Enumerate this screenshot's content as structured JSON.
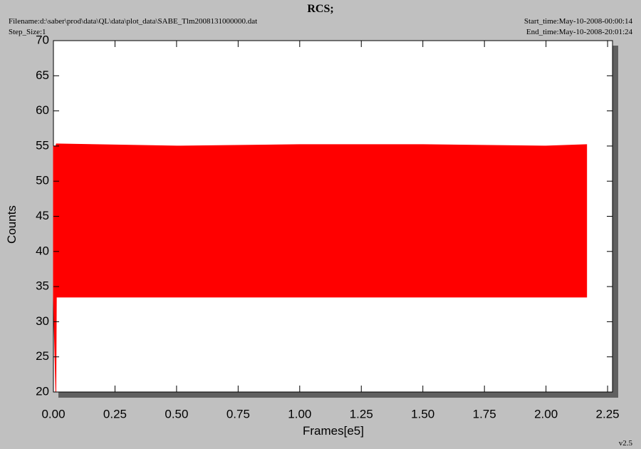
{
  "title": "RCS;",
  "filename": "Filename:d:\\saber\\prod\\data\\QL\\data\\plot_data\\SABE_Tlm2008131000000.dat",
  "step_size": "Step_Size:1",
  "start_time": "Start_time:May-10-2008-00:00:14",
  "end_time": "End_time:May-10-2008-20:01:24",
  "version": "v2.5",
  "chart_data": {
    "type": "range",
    "x_label": "Frames[e5]",
    "y_label": "Counts",
    "x": [
      0,
      0.01,
      0.012,
      0.5,
      1.0,
      1.5,
      2.0,
      2.165
    ],
    "high": [
      55,
      55,
      55.3,
      55,
      55.2,
      55.2,
      55,
      55.2
    ],
    "low": [
      33.5,
      20,
      33.5,
      33.5,
      33.5,
      33.5,
      33.5,
      33.5
    ],
    "color": "#ff0000",
    "xlim": [
      0,
      2.27
    ],
    "ylim": [
      20,
      70
    ],
    "xticks": [
      {
        "value": 0,
        "label": "0.00"
      },
      0.25,
      {
        "value": 0.5,
        "label": "0.50"
      },
      0.75,
      {
        "value": 1,
        "label": "1.00"
      },
      1.25,
      {
        "value": 1.5,
        "label": "1.50"
      },
      1.75,
      {
        "value": 2,
        "label": "2.00"
      },
      2.25
    ],
    "yticks": [
      20,
      25,
      30,
      35,
      40,
      45,
      50,
      55,
      60,
      65,
      70
    ]
  }
}
